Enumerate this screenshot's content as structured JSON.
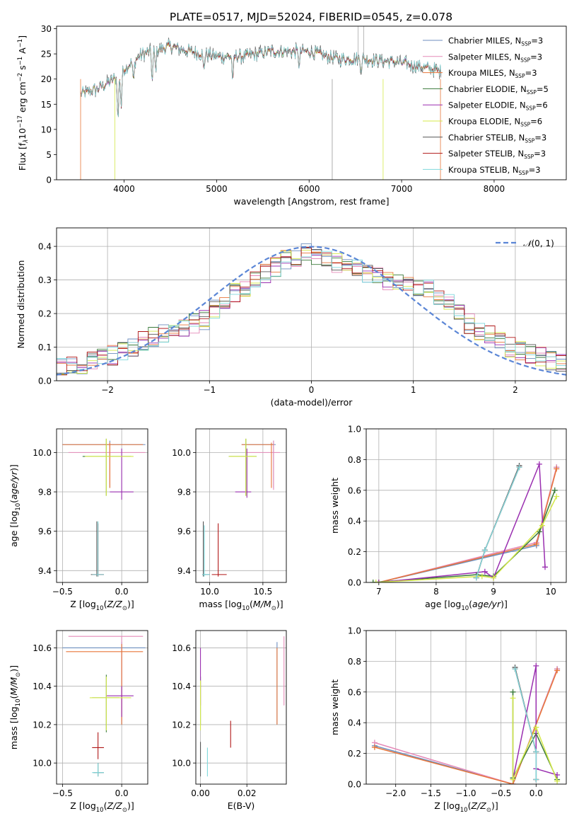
{
  "figure_title": "PLATE=0517, MJD=52024, FIBERID=0545, z=0.078",
  "colors": {
    "chabrier_miles": "#6c8ebf",
    "salpeter_miles": "#e58ab8",
    "kroupa_miles": "#e8763a",
    "chabrier_elodie": "#3a7a3a",
    "salpeter_elodie": "#9a2fb0",
    "kroupa_elodie": "#d4e84a",
    "chabrier_stelib": "#555555",
    "salpeter_stelib": "#b01818",
    "kroupa_stelib": "#7fd8dc",
    "normal": "#5b86d6"
  },
  "chart_data": [
    {
      "id": "spectrum",
      "type": "line",
      "xlabel": "wavelength [Angstrom, rest frame]",
      "ylabel": "Flux [f",
      "xlim": [
        3270,
        8780
      ],
      "ylim": [
        0,
        30.5
      ],
      "xticks": [
        4000,
        5000,
        6000,
        7000,
        8000
      ],
      "yticks": [
        0,
        5,
        10,
        15,
        20,
        25,
        30
      ],
      "legend_position": "top-right",
      "series": [
        {
          "key": "chabrier_miles",
          "name": "Chabrier MILES, N",
          "nssp": "=3"
        },
        {
          "key": "salpeter_miles",
          "name": "Salpeter MILES, N",
          "nssp": "=3"
        },
        {
          "key": "kroupa_miles",
          "name": "Kroupa MILES, N",
          "nssp": "=3"
        },
        {
          "key": "chabrier_elodie",
          "name": "Chabrier ELODIE, N",
          "nssp": "=5"
        },
        {
          "key": "salpeter_elodie",
          "name": "Salpeter ELODIE, N",
          "nssp": "=6"
        },
        {
          "key": "kroupa_elodie",
          "name": "Kroupa ELODIE, N",
          "nssp": "=6"
        },
        {
          "key": "chabrier_stelib",
          "name": "Chabrier STELIB, N",
          "nssp": "=3"
        },
        {
          "key": "salpeter_stelib",
          "name": "Salpeter STELIB, N",
          "nssp": "=3"
        },
        {
          "key": "kroupa_stelib",
          "name": "Kroupa STELIB, N",
          "nssp": "=3"
        }
      ],
      "continuum": [
        [
          3530,
          17
        ],
        [
          3700,
          18
        ],
        [
          3900,
          20
        ],
        [
          4000,
          22
        ],
        [
          4200,
          25
        ],
        [
          4500,
          26.5
        ],
        [
          4700,
          25.5
        ],
        [
          5000,
          24.5
        ],
        [
          5300,
          24.5
        ],
        [
          5600,
          25.5
        ],
        [
          6000,
          25.5
        ],
        [
          6300,
          24
        ],
        [
          6600,
          24
        ],
        [
          6900,
          23.5
        ],
        [
          7200,
          22.5
        ],
        [
          7430,
          21.5
        ]
      ]
    },
    {
      "id": "residuals",
      "type": "histogram",
      "xlabel": "(data-model)/error",
      "ylabel": "Normed distribution",
      "xlim": [
        -2.5,
        2.5
      ],
      "ylim": [
        0,
        0.455
      ],
      "xticks": [
        -2,
        -1,
        0,
        1,
        2
      ],
      "yticks": [
        0.0,
        0.1,
        0.2,
        0.3,
        0.4
      ],
      "legend_position": "top-right",
      "normal_curve": {
        "label": "(0, 1)",
        "mean": 0,
        "sigma": 1
      },
      "bin_edges_start": -2.5,
      "bin_width": 0.1,
      "profile": [
        0.04,
        0.045,
        0.05,
        0.06,
        0.07,
        0.075,
        0.09,
        0.1,
        0.12,
        0.13,
        0.14,
        0.15,
        0.16,
        0.17,
        0.18,
        0.21,
        0.23,
        0.26,
        0.28,
        0.3,
        0.32,
        0.34,
        0.36,
        0.37,
        0.38,
        0.37,
        0.36,
        0.35,
        0.34,
        0.33,
        0.32,
        0.31,
        0.3,
        0.3,
        0.29,
        0.28,
        0.27,
        0.25,
        0.23,
        0.2,
        0.17,
        0.15,
        0.14,
        0.12,
        0.1,
        0.09,
        0.08,
        0.07,
        0.06,
        0.05
      ]
    },
    {
      "id": "age_vs_z",
      "type": "errorbar",
      "xlabel": "Z [log",
      "ylabel": "age  [log",
      "xlim": [
        -0.55,
        0.22
      ],
      "ylim": [
        9.34,
        10.12
      ],
      "xticks": [
        -0.5,
        0.0
      ],
      "yticks": [
        9.4,
        9.6,
        9.8,
        10.0
      ],
      "points": [
        {
          "key": "chabrier_miles",
          "x": -0.1,
          "xlo": -0.5,
          "xhi": 0.2,
          "y": 10.04,
          "ylo": 9.82,
          "yhi": 10.06
        },
        {
          "key": "salpeter_miles",
          "x": -0.1,
          "xlo": -0.45,
          "xhi": 0.2,
          "y": 10.0,
          "ylo": 9.84,
          "yhi": 10.05
        },
        {
          "key": "kroupa_miles",
          "x": -0.1,
          "xlo": -0.5,
          "xhi": 0.18,
          "y": 10.04,
          "ylo": 9.82,
          "yhi": 10.05
        },
        {
          "key": "chabrier_elodie",
          "x": -0.13,
          "xlo": -0.33,
          "xhi": 0.08,
          "y": 9.98,
          "ylo": 9.78,
          "yhi": 10.07
        },
        {
          "key": "salpeter_elodie",
          "x": 0.0,
          "xlo": -0.1,
          "xhi": 0.1,
          "y": 9.8,
          "ylo": 9.76,
          "yhi": 10.02
        },
        {
          "key": "kroupa_elodie",
          "x": -0.13,
          "xlo": -0.31,
          "xhi": 0.1,
          "y": 9.98,
          "ylo": 9.78,
          "yhi": 10.07
        },
        {
          "key": "chabrier_stelib",
          "x": -0.21,
          "xlo": -0.26,
          "xhi": -0.15,
          "y": 9.38,
          "ylo": 9.37,
          "yhi": 9.65
        },
        {
          "key": "salpeter_stelib",
          "x": -0.2,
          "xlo": -0.25,
          "xhi": -0.15,
          "y": 9.38,
          "ylo": 9.37,
          "yhi": 9.64
        },
        {
          "key": "kroupa_stelib",
          "x": -0.2,
          "xlo": -0.25,
          "xhi": -0.15,
          "y": 9.38,
          "ylo": 9.37,
          "yhi": 9.65
        }
      ]
    },
    {
      "id": "age_vs_mass",
      "type": "errorbar",
      "xlabel": "mass [log",
      "ylabel": "",
      "xlim": [
        9.87,
        10.72
      ],
      "ylim": [
        9.34,
        10.12
      ],
      "xticks": [
        10.0,
        10.5
      ],
      "yticks": [
        9.4,
        9.6,
        9.8,
        10.0
      ],
      "points": [
        {
          "key": "chabrier_miles",
          "x": 10.6,
          "xlo": 10.3,
          "xhi": 10.62,
          "y": 10.04,
          "ylo": 9.82,
          "yhi": 10.06
        },
        {
          "key": "salpeter_miles",
          "x": 10.6,
          "xlo": 10.34,
          "xhi": 10.66,
          "y": 10.0,
          "ylo": 9.81,
          "yhi": 10.06
        },
        {
          "key": "kroupa_miles",
          "x": 10.58,
          "xlo": 10.3,
          "xhi": 10.6,
          "y": 10.04,
          "ylo": 9.82,
          "yhi": 10.05
        },
        {
          "key": "chabrier_elodie",
          "x": 10.34,
          "xlo": 10.18,
          "xhi": 10.44,
          "y": 9.98,
          "ylo": 9.78,
          "yhi": 10.07
        },
        {
          "key": "salpeter_elodie",
          "x": 10.35,
          "xlo": 10.24,
          "xhi": 10.39,
          "y": 9.8,
          "ylo": 9.77,
          "yhi": 10.02
        },
        {
          "key": "kroupa_elodie",
          "x": 10.34,
          "xlo": 10.18,
          "xhi": 10.44,
          "y": 9.98,
          "ylo": 9.78,
          "yhi": 10.07
        },
        {
          "key": "chabrier_stelib",
          "x": 9.94,
          "xlo": 9.93,
          "xhi": 10.0,
          "y": 9.38,
          "ylo": 9.37,
          "yhi": 9.65
        },
        {
          "key": "salpeter_stelib",
          "x": 10.08,
          "xlo": 10.02,
          "xhi": 10.16,
          "y": 9.38,
          "ylo": 9.37,
          "yhi": 9.64
        },
        {
          "key": "kroupa_stelib",
          "x": 9.95,
          "xlo": 9.93,
          "xhi": 10.0,
          "y": 9.38,
          "ylo": 9.37,
          "yhi": 9.63
        }
      ]
    },
    {
      "id": "weight_vs_age",
      "type": "line",
      "xlabel": "age  [log",
      "ylabel": "mass weight",
      "xlim": [
        6.78,
        10.27
      ],
      "ylim": [
        0,
        1.0
      ],
      "xticks": [
        7,
        8,
        9,
        10
      ],
      "yticks": [
        0.0,
        0.2,
        0.4,
        0.6,
        0.8,
        1.0
      ],
      "series": [
        {
          "key": "chabrier_miles",
          "points": [
            [
              7.0,
              0.0
            ],
            [
              9.75,
              0.24
            ],
            [
              10.1,
              0.75
            ]
          ]
        },
        {
          "key": "salpeter_miles",
          "points": [
            [
              7.0,
              0.0
            ],
            [
              9.75,
              0.26
            ],
            [
              10.1,
              0.75
            ]
          ]
        },
        {
          "key": "kroupa_miles",
          "points": [
            [
              7.0,
              0.0
            ],
            [
              9.75,
              0.25
            ],
            [
              10.1,
              0.74
            ]
          ]
        },
        {
          "key": "chabrier_elodie",
          "points": [
            [
              6.9,
              0.0
            ],
            [
              8.7,
              0.05
            ],
            [
              9.0,
              0.04
            ],
            [
              9.8,
              0.33
            ],
            [
              10.07,
              0.6
            ]
          ]
        },
        {
          "key": "salpeter_elodie",
          "points": [
            [
              7.0,
              0.0
            ],
            [
              8.85,
              0.07
            ],
            [
              9.0,
              0.03
            ],
            [
              9.8,
              0.77
            ],
            [
              9.9,
              0.1
            ]
          ]
        },
        {
          "key": "kroupa_elodie",
          "points": [
            [
              6.95,
              0.0
            ],
            [
              8.8,
              0.04
            ],
            [
              9.0,
              0.03
            ],
            [
              9.85,
              0.37
            ],
            [
              10.1,
              0.56
            ]
          ]
        },
        {
          "key": "chabrier_stelib",
          "points": [
            [
              8.7,
              0.03
            ],
            [
              8.85,
              0.21
            ],
            [
              9.45,
              0.76
            ]
          ]
        },
        {
          "key": "salpeter_stelib",
          "points": [
            [
              8.7,
              0.03
            ],
            [
              8.85,
              0.21
            ],
            [
              9.45,
              0.75
            ]
          ]
        },
        {
          "key": "kroupa_stelib",
          "points": [
            [
              8.7,
              0.03
            ],
            [
              8.85,
              0.21
            ],
            [
              9.45,
              0.75
            ]
          ]
        }
      ]
    },
    {
      "id": "mass_vs_z",
      "type": "errorbar",
      "xlabel": "Z [log",
      "ylabel": "mass [log",
      "xlim": [
        -0.55,
        0.22
      ],
      "ylim": [
        9.89,
        10.69
      ],
      "xticks": [
        -0.5,
        0.0
      ],
      "yticks": [
        10.0,
        10.2,
        10.4,
        10.6
      ],
      "points": [
        {
          "key": "chabrier_miles",
          "x": 0.0,
          "xlo": -0.5,
          "xhi": 0.2,
          "y": 10.6,
          "ylo": 10.2,
          "yhi": 10.63
        },
        {
          "key": "salpeter_miles",
          "x": 0.0,
          "xlo": -0.45,
          "xhi": 0.18,
          "y": 10.66,
          "ylo": 10.22,
          "yhi": 10.66
        },
        {
          "key": "kroupa_miles",
          "x": 0.0,
          "xlo": -0.47,
          "xhi": 0.18,
          "y": 10.58,
          "ylo": 10.2,
          "yhi": 10.62
        },
        {
          "key": "chabrier_elodie",
          "x": -0.13,
          "xlo": -0.25,
          "xhi": -0.02,
          "y": 10.34,
          "ylo": 10.16,
          "yhi": 10.46
        },
        {
          "key": "salpeter_elodie",
          "x": 0.0,
          "xlo": -0.13,
          "xhi": 0.1,
          "y": 10.35,
          "ylo": 10.24,
          "yhi": 10.4
        },
        {
          "key": "kroupa_elodie",
          "x": -0.13,
          "xlo": -0.27,
          "xhi": 0.08,
          "y": 10.34,
          "ylo": 10.17,
          "yhi": 10.45
        },
        {
          "key": "chabrier_stelib",
          "x": -0.2,
          "xlo": -0.24,
          "xhi": -0.15,
          "y": 9.95,
          "ylo": 9.93,
          "yhi": 10.0
        },
        {
          "key": "salpeter_stelib",
          "x": -0.2,
          "xlo": -0.25,
          "xhi": -0.15,
          "y": 10.08,
          "ylo": 10.02,
          "yhi": 10.16
        },
        {
          "key": "kroupa_stelib",
          "x": -0.2,
          "xlo": -0.25,
          "xhi": -0.15,
          "y": 9.95,
          "ylo": 9.93,
          "yhi": 10.0
        }
      ]
    },
    {
      "id": "mass_vs_ebv",
      "type": "errorbar",
      "xlabel": "E(B-V)",
      "ylabel": "",
      "xlim": [
        -0.002,
        0.037
      ],
      "ylim": [
        9.89,
        10.69
      ],
      "xticks": [
        0.0,
        0.02
      ],
      "yticks": [
        10.0,
        10.2,
        10.4,
        10.6
      ],
      "points": [
        {
          "key": "chabrier_miles",
          "x": 0.033,
          "y": 10.6,
          "ylo": 10.2,
          "yhi": 10.63
        },
        {
          "key": "salpeter_miles",
          "x": 0.036,
          "y": 10.66,
          "ylo": 10.3,
          "yhi": 10.66
        },
        {
          "key": "kroupa_miles",
          "x": 0.033,
          "y": 10.58,
          "ylo": 10.2,
          "yhi": 10.6
        },
        {
          "key": "chabrier_elodie",
          "x": 0.0,
          "y": 10.34,
          "ylo": 10.2,
          "yhi": 10.45
        },
        {
          "key": "salpeter_elodie",
          "x": 0.0,
          "y": 10.45,
          "ylo": 10.3,
          "yhi": 10.6
        },
        {
          "key": "kroupa_elodie",
          "x": 0.0,
          "y": 10.3,
          "ylo": 10.17,
          "yhi": 10.43
        },
        {
          "key": "chabrier_stelib",
          "x": 0.0,
          "y": 10.0,
          "ylo": 9.93,
          "yhi": 10.11
        },
        {
          "key": "salpeter_stelib",
          "x": 0.013,
          "y": 10.15,
          "ylo": 10.08,
          "yhi": 10.22
        },
        {
          "key": "kroupa_stelib",
          "x": 0.003,
          "y": 10.0,
          "ylo": 9.93,
          "yhi": 10.08
        }
      ]
    },
    {
      "id": "weight_vs_z",
      "type": "line",
      "xlabel": "Z [log",
      "ylabel": "mass weight",
      "xlim": [
        -2.42,
        0.43
      ],
      "ylim": [
        0,
        1.0
      ],
      "xticks": [
        -2.0,
        -1.5,
        -1.0,
        -0.5,
        0.0
      ],
      "yticks": [
        0.0,
        0.2,
        0.4,
        0.6,
        0.8,
        1.0
      ],
      "series": [
        {
          "key": "chabrier_miles",
          "points": [
            [
              -2.3,
              0.25
            ],
            [
              -0.33,
              0.0
            ],
            [
              0.3,
              0.75
            ]
          ]
        },
        {
          "key": "salpeter_miles",
          "points": [
            [
              -2.3,
              0.27
            ],
            [
              -0.33,
              0.0
            ],
            [
              0.3,
              0.75
            ]
          ]
        },
        {
          "key": "kroupa_miles",
          "points": [
            [
              -2.3,
              0.24
            ],
            [
              -0.33,
              0.0
            ],
            [
              0.3,
              0.74
            ]
          ]
        },
        {
          "key": "chabrier_elodie",
          "points": [
            [
              -0.33,
              0.6
            ],
            [
              -0.33,
              0.04
            ],
            [
              0.0,
              0.33
            ],
            [
              0.3,
              0.03
            ]
          ]
        },
        {
          "key": "salpeter_elodie",
          "points": [
            [
              -0.33,
              0.03
            ],
            [
              0.0,
              0.77
            ],
            [
              0.0,
              0.1
            ],
            [
              0.3,
              0.06
            ]
          ]
        },
        {
          "key": "kroupa_elodie",
          "points": [
            [
              -0.33,
              0.56
            ],
            [
              -0.33,
              0.03
            ],
            [
              0.0,
              0.37
            ],
            [
              0.3,
              0.02
            ]
          ]
        },
        {
          "key": "chabrier_stelib",
          "points": [
            [
              -0.3,
              0.76
            ],
            [
              0.0,
              0.21
            ],
            [
              0.0,
              0.03
            ]
          ]
        },
        {
          "key": "salpeter_stelib",
          "points": [
            [
              -0.3,
              0.75
            ],
            [
              0.0,
              0.21
            ],
            [
              0.0,
              0.03
            ]
          ]
        },
        {
          "key": "kroupa_stelib",
          "points": [
            [
              -0.3,
              0.75
            ],
            [
              0.0,
              0.21
            ],
            [
              0.0,
              0.03
            ]
          ]
        }
      ]
    }
  ]
}
